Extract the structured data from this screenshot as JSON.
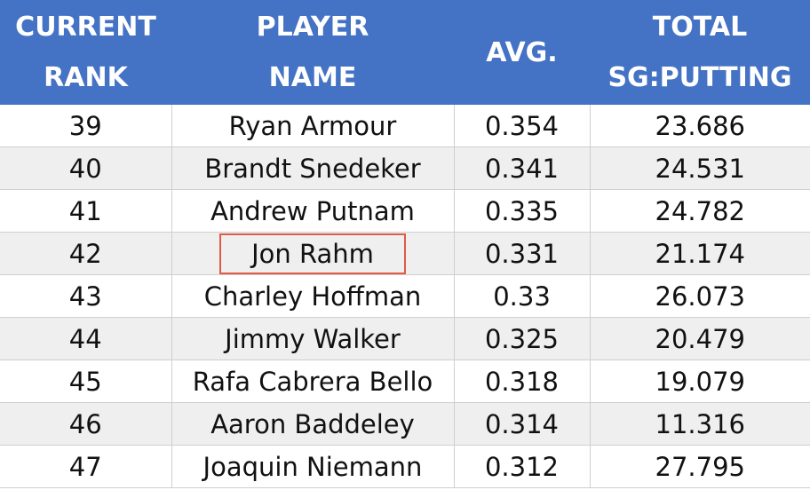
{
  "chart_data": {
    "type": "table",
    "columns": [
      {
        "line1": "CURRENT",
        "line2": "RANK"
      },
      {
        "line1": "PLAYER",
        "line2": "NAME"
      },
      {
        "line1": "AVG.",
        "line2": ""
      },
      {
        "line1": "TOTAL",
        "line2": "SG:PUTTING"
      }
    ],
    "rows": [
      {
        "rank": "39",
        "name": "Ryan Armour",
        "avg": "0.354",
        "total": "23.686"
      },
      {
        "rank": "40",
        "name": "Brandt Snedeker",
        "avg": "0.341",
        "total": "24.531"
      },
      {
        "rank": "41",
        "name": "Andrew Putnam",
        "avg": "0.335",
        "total": "24.782"
      },
      {
        "rank": "42",
        "name": "Jon Rahm",
        "avg": "0.331",
        "total": "21.174",
        "highlighted": true
      },
      {
        "rank": "43",
        "name": "Charley Hoffman",
        "avg": "0.33",
        "total": "26.073"
      },
      {
        "rank": "44",
        "name": "Jimmy Walker",
        "avg": "0.325",
        "total": "20.479"
      },
      {
        "rank": "45",
        "name": "Rafa Cabrera Bello",
        "avg": "0.318",
        "total": "19.079"
      },
      {
        "rank": "46",
        "name": "Aaron Baddeley",
        "avg": "0.314",
        "total": "11.316"
      },
      {
        "rank": "47",
        "name": "Joaquin Niemann",
        "avg": "0.312",
        "total": "27.795"
      }
    ],
    "colors": {
      "header_bg": "#4472c4",
      "header_text": "#ffffff",
      "stripe": "#efefef",
      "highlight_border": "#e05a47"
    }
  }
}
